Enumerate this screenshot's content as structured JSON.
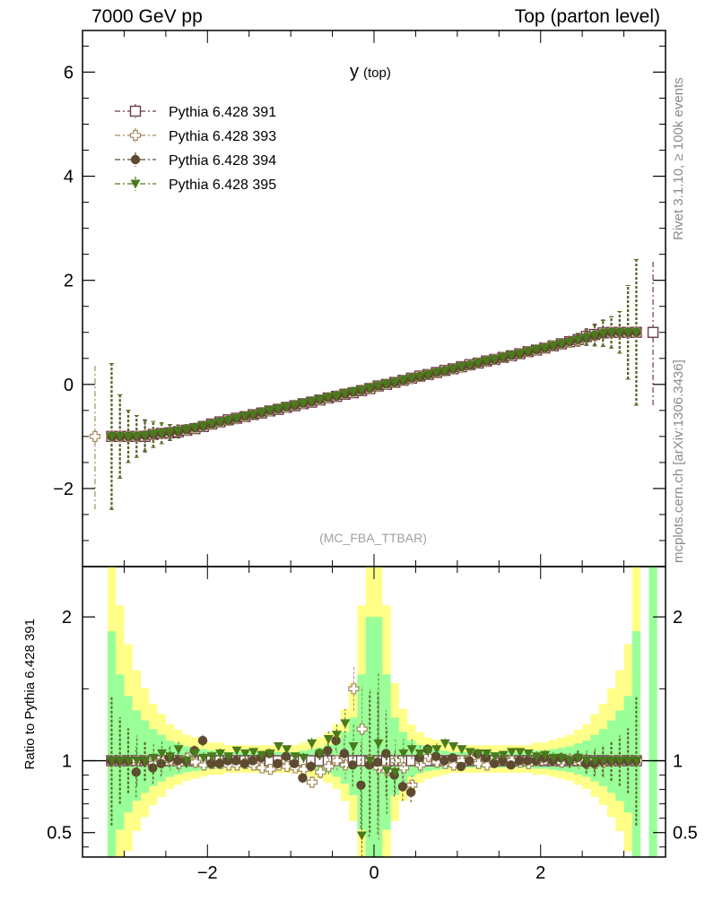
{
  "header": {
    "left": "7000 GeV pp",
    "right": "Top (parton level)"
  },
  "side_text": {
    "upper": "Rivet 3.1.10, ≥ 100k events",
    "lower": "mcplots.cern.ch [arXiv:1306.3436]"
  },
  "colors": {
    "s391": "#6b3a4e",
    "s393": "#a08a5e",
    "s394": "#5e4a30",
    "s395": "#4a7a1c",
    "band_inner": "#99ff99",
    "band_outer": "#ffff88"
  },
  "chart_data": [
    {
      "type": "line",
      "title": "y (top)",
      "title_main": "y",
      "title_sub": "(top)",
      "watermark": "(MC_FBA_TTBAR)",
      "xlim": [
        -3.5,
        3.5
      ],
      "ylim": [
        -3.5,
        6.8
      ],
      "yticks": [
        -2,
        0,
        2,
        4,
        6
      ],
      "ytick_labels": [
        "−2",
        "0",
        "2",
        "4",
        "6"
      ],
      "grid": false,
      "legend_position": "top-left",
      "x": [
        -3.15,
        -3.05,
        -2.95,
        -2.85,
        -2.75,
        -2.65,
        -2.55,
        -2.45,
        -2.35,
        -2.25,
        -2.15,
        -2.05,
        -1.95,
        -1.85,
        -1.75,
        -1.65,
        -1.55,
        -1.45,
        -1.35,
        -1.25,
        -1.15,
        -1.05,
        -0.95,
        -0.85,
        -0.75,
        -0.65,
        -0.55,
        -0.45,
        -0.35,
        -0.25,
        -0.15,
        -0.05,
        0.05,
        0.15,
        0.25,
        0.35,
        0.45,
        0.55,
        0.65,
        0.75,
        0.85,
        0.95,
        1.05,
        1.15,
        1.25,
        1.35,
        1.45,
        1.55,
        1.65,
        1.75,
        1.85,
        1.95,
        2.05,
        2.15,
        2.25,
        2.35,
        2.45,
        2.55,
        2.65,
        2.75,
        2.85,
        2.95,
        3.05,
        3.15
      ],
      "series": [
        {
          "name": "Pythia 6.428 391",
          "color_key": "s391",
          "marker": "open-square",
          "y": [
            -1.0,
            -1.0,
            -1.0,
            -1.0,
            -1.0,
            -0.96,
            -0.94,
            -0.93,
            -0.91,
            -0.88,
            -0.85,
            -0.81,
            -0.76,
            -0.72,
            -0.68,
            -0.65,
            -0.62,
            -0.58,
            -0.55,
            -0.51,
            -0.48,
            -0.44,
            -0.41,
            -0.37,
            -0.34,
            -0.3,
            -0.26,
            -0.23,
            -0.19,
            -0.16,
            -0.12,
            -0.08,
            -0.03,
            0.0,
            0.04,
            0.08,
            0.12,
            0.16,
            0.19,
            0.23,
            0.27,
            0.3,
            0.34,
            0.38,
            0.41,
            0.45,
            0.48,
            0.52,
            0.55,
            0.59,
            0.63,
            0.66,
            0.7,
            0.74,
            0.78,
            0.82,
            0.86,
            0.92,
            0.96,
            0.99,
            1.0,
            1.0,
            1.0,
            1.0
          ],
          "err": [
            1.4,
            0.8,
            0.5,
            0.4,
            0.3,
            0.25,
            0.2,
            0.15,
            0.12,
            0.1,
            0.08,
            0.07,
            0.06,
            0.05,
            0.05,
            0.04,
            0.04,
            0.04,
            0.03,
            0.03,
            0.03,
            0.03,
            0.03,
            0.03,
            0.03,
            0.03,
            0.03,
            0.03,
            0.03,
            0.03,
            0.03,
            0.03,
            0.03,
            0.03,
            0.03,
            0.03,
            0.03,
            0.03,
            0.03,
            0.03,
            0.03,
            0.03,
            0.03,
            0.03,
            0.03,
            0.03,
            0.03,
            0.04,
            0.04,
            0.04,
            0.05,
            0.05,
            0.06,
            0.07,
            0.08,
            0.1,
            0.12,
            0.15,
            0.2,
            0.25,
            0.3,
            0.4,
            0.9,
            1.4
          ]
        },
        {
          "name": "Pythia 6.428 393",
          "color_key": "s393",
          "marker": "open-cross",
          "y": [
            -1.0,
            -1.0,
            -1.0,
            -1.0,
            -0.98,
            -0.96,
            -0.94,
            -0.92,
            -0.9,
            -0.88,
            -0.84,
            -0.8,
            -0.77,
            -0.73,
            -0.69,
            -0.66,
            -0.62,
            -0.58,
            -0.54,
            -0.51,
            -0.47,
            -0.44,
            -0.4,
            -0.37,
            -0.33,
            -0.3,
            -0.26,
            -0.22,
            -0.18,
            -0.15,
            -0.11,
            -0.07,
            -0.04,
            0.0,
            0.04,
            0.08,
            0.11,
            0.15,
            0.19,
            0.22,
            0.26,
            0.3,
            0.33,
            0.37,
            0.41,
            0.44,
            0.48,
            0.52,
            0.55,
            0.59,
            0.63,
            0.66,
            0.7,
            0.74,
            0.77,
            0.81,
            0.85,
            0.9,
            0.94,
            0.98,
            1.0,
            1.0,
            1.0,
            1.0
          ],
          "err": [
            1.4,
            0.8,
            0.5,
            0.4,
            0.3,
            0.25,
            0.2,
            0.15,
            0.12,
            0.1,
            0.08,
            0.07,
            0.06,
            0.05,
            0.05,
            0.04,
            0.04,
            0.04,
            0.03,
            0.03,
            0.03,
            0.03,
            0.03,
            0.03,
            0.03,
            0.03,
            0.03,
            0.03,
            0.03,
            0.03,
            0.03,
            0.03,
            0.03,
            0.03,
            0.03,
            0.03,
            0.03,
            0.03,
            0.03,
            0.03,
            0.03,
            0.03,
            0.03,
            0.03,
            0.03,
            0.03,
            0.03,
            0.04,
            0.04,
            0.04,
            0.05,
            0.05,
            0.06,
            0.07,
            0.08,
            0.1,
            0.12,
            0.15,
            0.2,
            0.25,
            0.3,
            0.4,
            0.9,
            1.4
          ]
        },
        {
          "name": "Pythia 6.428 394",
          "color_key": "s394",
          "marker": "filled-circle",
          "y": [
            -1.0,
            -1.0,
            -1.0,
            -1.0,
            -0.98,
            -0.96,
            -0.94,
            -0.92,
            -0.9,
            -0.87,
            -0.83,
            -0.8,
            -0.76,
            -0.72,
            -0.69,
            -0.65,
            -0.61,
            -0.58,
            -0.54,
            -0.5,
            -0.47,
            -0.43,
            -0.4,
            -0.36,
            -0.33,
            -0.29,
            -0.25,
            -0.22,
            -0.18,
            -0.14,
            -0.11,
            -0.07,
            -0.03,
            0.01,
            0.04,
            0.08,
            0.12,
            0.15,
            0.19,
            0.23,
            0.26,
            0.3,
            0.34,
            0.37,
            0.41,
            0.45,
            0.48,
            0.52,
            0.56,
            0.59,
            0.63,
            0.67,
            0.7,
            0.74,
            0.78,
            0.82,
            0.86,
            0.9,
            0.94,
            0.98,
            1.0,
            1.0,
            1.0,
            1.0
          ],
          "err": [
            1.4,
            0.8,
            0.5,
            0.4,
            0.3,
            0.25,
            0.2,
            0.15,
            0.12,
            0.1,
            0.08,
            0.07,
            0.06,
            0.05,
            0.05,
            0.04,
            0.04,
            0.04,
            0.03,
            0.03,
            0.03,
            0.03,
            0.03,
            0.03,
            0.03,
            0.03,
            0.03,
            0.03,
            0.03,
            0.03,
            0.03,
            0.03,
            0.03,
            0.03,
            0.03,
            0.03,
            0.03,
            0.03,
            0.03,
            0.03,
            0.03,
            0.03,
            0.03,
            0.03,
            0.03,
            0.03,
            0.03,
            0.04,
            0.04,
            0.04,
            0.05,
            0.05,
            0.06,
            0.07,
            0.08,
            0.1,
            0.12,
            0.15,
            0.2,
            0.25,
            0.3,
            0.4,
            0.9,
            1.4
          ]
        },
        {
          "name": "Pythia 6.428 395",
          "color_key": "s395",
          "marker": "filled-triangle-down",
          "y": [
            -1.0,
            -1.0,
            -1.0,
            -1.0,
            -0.98,
            -0.96,
            -0.94,
            -0.92,
            -0.9,
            -0.87,
            -0.83,
            -0.8,
            -0.76,
            -0.72,
            -0.69,
            -0.65,
            -0.61,
            -0.58,
            -0.54,
            -0.5,
            -0.47,
            -0.43,
            -0.4,
            -0.36,
            -0.33,
            -0.29,
            -0.25,
            -0.22,
            -0.18,
            -0.14,
            -0.11,
            -0.07,
            -0.03,
            0.01,
            0.04,
            0.08,
            0.12,
            0.15,
            0.19,
            0.23,
            0.26,
            0.3,
            0.34,
            0.37,
            0.41,
            0.45,
            0.48,
            0.52,
            0.56,
            0.59,
            0.63,
            0.67,
            0.7,
            0.74,
            0.78,
            0.82,
            0.86,
            0.9,
            0.94,
            0.98,
            1.0,
            1.0,
            1.0,
            1.0
          ],
          "err": [
            1.4,
            0.8,
            0.5,
            0.4,
            0.3,
            0.25,
            0.2,
            0.15,
            0.12,
            0.1,
            0.08,
            0.07,
            0.06,
            0.05,
            0.05,
            0.04,
            0.04,
            0.04,
            0.03,
            0.03,
            0.03,
            0.03,
            0.03,
            0.03,
            0.03,
            0.03,
            0.03,
            0.03,
            0.03,
            0.03,
            0.03,
            0.03,
            0.03,
            0.03,
            0.03,
            0.03,
            0.03,
            0.03,
            0.03,
            0.03,
            0.03,
            0.03,
            0.03,
            0.03,
            0.03,
            0.03,
            0.03,
            0.04,
            0.04,
            0.04,
            0.05,
            0.05,
            0.06,
            0.07,
            0.08,
            0.1,
            0.12,
            0.15,
            0.2,
            0.25,
            0.3,
            0.4,
            0.9,
            1.4
          ]
        }
      ],
      "extra_points": [
        {
          "series": "Pythia 6.428 393",
          "x": -3.35,
          "y": -1.0
        },
        {
          "series": "Pythia 6.428 391",
          "x": 3.35,
          "y": 1.0
        }
      ]
    },
    {
      "type": "line",
      "ylabel": "Ratio to Pythia 6.428 391",
      "xlim": [
        -3.5,
        3.5
      ],
      "ylim": [
        0.33,
        2.35
      ],
      "xticks": [
        -2,
        0,
        2
      ],
      "xtick_labels": [
        "−2",
        "0",
        "2"
      ],
      "yticks": [
        0.5,
        1,
        2
      ],
      "ytick_labels": [
        "0.5",
        "1",
        "2"
      ],
      "reference_line": 1.0,
      "band_inner_halfwidth": [
        0.9,
        0.6,
        0.45,
        0.35,
        0.28,
        0.22,
        0.18,
        0.14,
        0.12,
        0.1,
        0.09,
        0.08,
        0.07,
        0.07,
        0.06,
        0.06,
        0.06,
        0.06,
        0.06,
        0.06,
        0.06,
        0.06,
        0.06,
        0.07,
        0.08,
        0.09,
        0.11,
        0.14,
        0.2,
        0.3,
        0.6,
        1.0,
        1.0,
        0.6,
        0.3,
        0.2,
        0.14,
        0.11,
        0.09,
        0.08,
        0.07,
        0.06,
        0.06,
        0.06,
        0.06,
        0.06,
        0.06,
        0.06,
        0.06,
        0.06,
        0.06,
        0.07,
        0.07,
        0.08,
        0.09,
        0.1,
        0.12,
        0.14,
        0.18,
        0.22,
        0.28,
        0.35,
        0.45,
        0.9
      ],
      "series": [
        {
          "name": "Pythia 6.428 391",
          "color_key": "s391",
          "marker": "open-square",
          "y": [
            1.0,
            1.0,
            1.0,
            1.0,
            1.0,
            1.0,
            1.0,
            1.0,
            1.0,
            1.0,
            1.0,
            1.0,
            1.0,
            1.0,
            1.0,
            1.0,
            1.0,
            1.0,
            1.0,
            1.0,
            1.0,
            1.0,
            1.0,
            1.0,
            1.0,
            1.0,
            1.0,
            1.0,
            1.0,
            1.0,
            1.0,
            1.0,
            1.0,
            1.0,
            1.0,
            1.0,
            1.0,
            1.0,
            1.0,
            1.0,
            1.0,
            1.0,
            1.0,
            1.0,
            1.0,
            1.0,
            1.0,
            1.0,
            1.0,
            1.0,
            1.0,
            1.0,
            1.0,
            1.0,
            1.0,
            1.0,
            1.0,
            1.0,
            1.0,
            1.0,
            1.0,
            1.0,
            1.0,
            1.0
          ]
        },
        {
          "name": "Pythia 6.428 393",
          "color_key": "s393",
          "marker": "open-cross",
          "y": [
            1.0,
            1.0,
            1.0,
            1.0,
            1.0,
            0.98,
            1.0,
            1.0,
            0.98,
            1.02,
            0.99,
            0.97,
            0.98,
            0.98,
            0.97,
            0.97,
            0.98,
            0.97,
            0.95,
            0.94,
            0.97,
            0.96,
            0.95,
            0.94,
            0.85,
            0.92,
            0.96,
            1.0,
            0.97,
            1.5,
            1.22,
            1.0,
            0.95,
            0.93,
            1.0,
            0.95,
            0.83,
            0.97,
            1.03,
            0.99,
            0.98,
            0.97,
            1.0,
            1.02,
            0.98,
            0.97,
            1.0,
            1.01,
            1.0,
            0.99,
            0.98,
            1.0,
            1.01,
            1.0,
            0.99,
            1.0,
            1.0,
            0.98,
            0.98,
            0.99,
            1.0,
            1.0,
            1.0,
            1.0
          ]
        },
        {
          "name": "Pythia 6.428 394",
          "color_key": "s394",
          "marker": "filled-circle",
          "y": [
            1.0,
            1.0,
            1.0,
            0.92,
            1.0,
            0.95,
            0.98,
            1.02,
            1.0,
            1.0,
            1.07,
            1.14,
            0.98,
            0.98,
            1.0,
            1.0,
            0.98,
            1.0,
            1.02,
            1.05,
            0.98,
            1.03,
            0.98,
            0.88,
            0.96,
            1.05,
            1.07,
            1.14,
            1.05,
            0.97,
            0.83,
            0.97,
            0.99,
            1.05,
            0.9,
            0.82,
            0.78,
            1.02,
            1.08,
            1.03,
            1.0,
            1.02,
            0.96,
            1.0,
            1.05,
            1.02,
            0.98,
            1.0,
            0.97,
            1.0,
            1.0,
            1.0,
            1.02,
            1.0,
            1.02,
            1.0,
            1.02,
            0.98,
            0.98,
            1.0,
            1.0,
            1.0,
            1.0,
            1.0
          ]
        },
        {
          "name": "Pythia 6.428 395",
          "color_key": "s395",
          "marker": "filled-triangle-down",
          "y": [
            1.0,
            1.0,
            1.0,
            1.0,
            1.0,
            1.02,
            1.05,
            1.03,
            1.08,
            1.0,
            1.05,
            1.02,
            1.03,
            1.05,
            1.03,
            1.07,
            1.05,
            1.06,
            1.04,
            1.05,
            1.1,
            1.08,
            1.03,
            1.02,
            1.12,
            1.05,
            1.15,
            1.18,
            1.26,
            1.1,
            0.48,
            1.0,
            1.12,
            0.93,
            0.92,
            1.05,
            1.08,
            1.05,
            1.07,
            1.08,
            1.12,
            1.1,
            1.08,
            1.06,
            1.05,
            1.05,
            1.03,
            1.04,
            1.06,
            1.06,
            1.05,
            1.03,
            1.04,
            1.02,
            1.02,
            1.0,
            1.02,
            1.0,
            1.0,
            1.0,
            1.0,
            1.0,
            1.0,
            1.0
          ]
        }
      ]
    }
  ]
}
